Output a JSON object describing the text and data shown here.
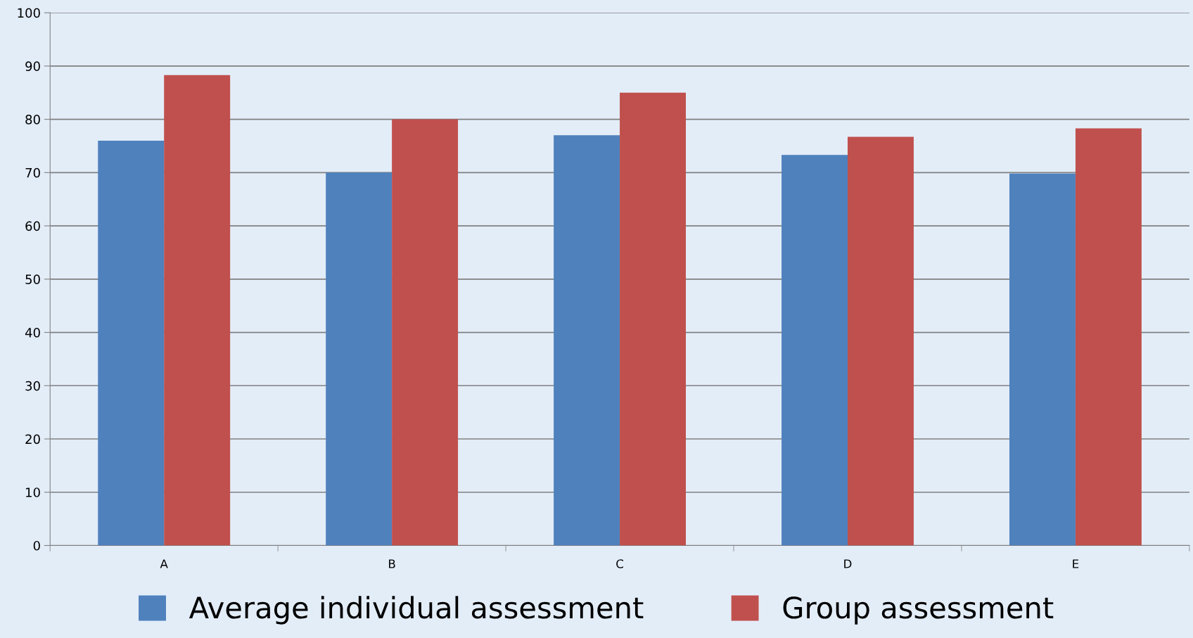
{
  "chart_data": {
    "type": "bar",
    "categories": [
      "A",
      "B",
      "C",
      "D",
      "E"
    ],
    "series": [
      {
        "name": "Average individual assessment",
        "color": "#4f81bd",
        "values": [
          76,
          70,
          77,
          73.3,
          69.8
        ]
      },
      {
        "name": "Group assessment",
        "color": "#c0504d",
        "values": [
          88.3,
          80,
          85,
          76.7,
          78.3
        ]
      }
    ],
    "ylim": [
      0,
      100
    ],
    "yticks": [
      0,
      10,
      20,
      30,
      40,
      50,
      60,
      70,
      80,
      90,
      100
    ],
    "grid": "y",
    "legend": "bottom"
  }
}
